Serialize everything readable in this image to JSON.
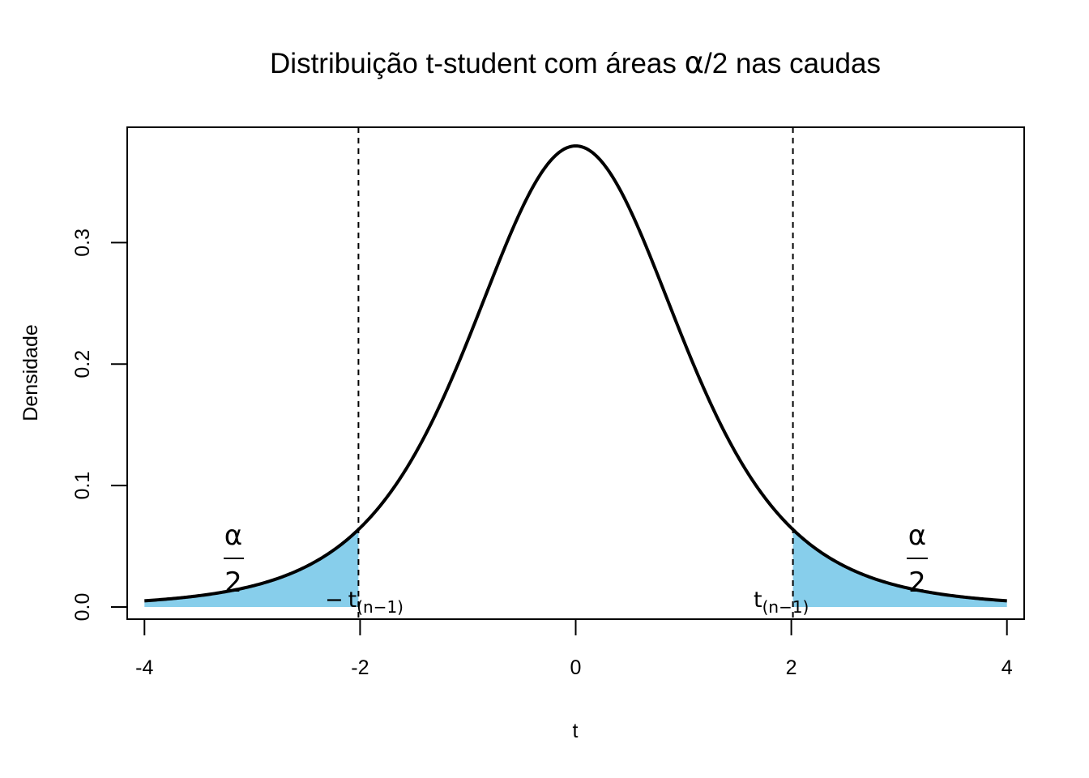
{
  "chart_data": {
    "type": "area",
    "title": "Distribuição t-student com áreas α/2 nas caudas",
    "title_parts": {
      "before": "Distribuição t-student com áreas ",
      "alpha": "α",
      "slash": "/",
      "two": "2",
      "after": " nas caudas"
    },
    "xlabel": "t",
    "ylabel": "Densidade",
    "xlim": [
      -4.16,
      4.16
    ],
    "ylim": [
      -0.01,
      0.395
    ],
    "x_ticks": [
      -4,
      -2,
      0,
      2,
      4
    ],
    "x_tick_labels": [
      "-4",
      "-2",
      "0",
      "2",
      "4"
    ],
    "y_ticks": [
      0.0,
      0.1,
      0.2,
      0.3
    ],
    "y_tick_labels": [
      "0.0",
      "0.1",
      "0.2",
      "0.3"
    ],
    "grid": false,
    "series": [
      {
        "kind": "density-curve",
        "distribution": "t-student",
        "df": 5,
        "x_range": [
          -4,
          4
        ],
        "color": "#000000"
      }
    ],
    "shaded_tails": {
      "color": "#87CEEB",
      "left_range": [
        -4,
        -2.015
      ],
      "right_range": [
        2.015,
        4
      ]
    },
    "critical_lines": [
      -2.015,
      2.015
    ],
    "annotations": {
      "alpha_fraction": {
        "numerator": "α",
        "denominator": "2",
        "positions_x": [
          -3.3,
          3.3
        ]
      },
      "neg_critical": {
        "minus": "−",
        "t": "t",
        "subscript": "(n−1)"
      },
      "pos_critical": {
        "t": "t",
        "subscript": "(n−1)"
      }
    }
  }
}
